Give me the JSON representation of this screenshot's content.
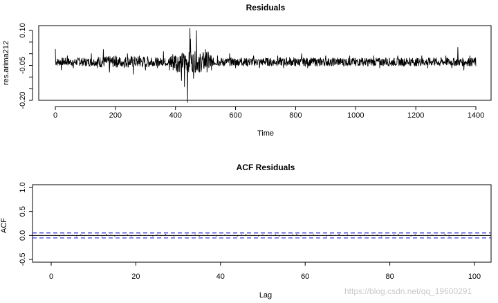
{
  "chart_data": [
    {
      "type": "line",
      "title": "Residuals",
      "xlabel": "Time",
      "ylabel": "res.arima212",
      "xlim": [
        0,
        1400
      ],
      "ylim": [
        -0.2,
        0.1
      ],
      "x_ticks": [
        "0",
        "200",
        "400",
        "600",
        "800",
        "1000",
        "1200",
        "1400"
      ],
      "y_ticks": [
        "-0.20",
        "-0.05",
        "0.10"
      ],
      "grid": false,
      "series": [
        {
          "x": [
            0,
            20,
            40,
            60,
            80,
            100,
            120,
            140,
            160,
            180,
            200,
            220,
            240,
            260,
            280,
            300,
            320,
            340,
            360,
            380,
            400,
            420,
            430,
            440,
            450,
            460,
            470,
            480,
            500,
            520,
            540,
            560,
            580,
            600,
            620,
            640,
            660,
            680,
            700,
            720,
            740,
            760,
            780,
            800,
            820,
            840,
            860,
            880,
            900,
            920,
            940,
            960,
            980,
            1000,
            1020,
            1040,
            1060,
            1080,
            1100,
            1120,
            1140,
            1160,
            1180,
            1200,
            1220,
            1240,
            1260,
            1280,
            1300,
            1320,
            1340,
            1360,
            1380,
            1400
          ],
          "y": [
            0.02,
            -0.04,
            0.03,
            -0.03,
            0.02,
            -0.02,
            0.04,
            -0.03,
            0.06,
            -0.05,
            0.03,
            -0.02,
            0.04,
            -0.06,
            0.03,
            -0.04,
            0.02,
            -0.03,
            0.05,
            -0.04,
            0.03,
            -0.09,
            -0.12,
            -0.21,
            0.11,
            -0.08,
            0.1,
            -0.05,
            0.06,
            -0.04,
            0.03,
            -0.02,
            0.04,
            -0.03,
            0.02,
            -0.02,
            0.03,
            -0.03,
            0.02,
            -0.02,
            0.03,
            -0.03,
            0.02,
            -0.02,
            0.04,
            -0.03,
            0.02,
            -0.02,
            0.03,
            -0.02,
            0.02,
            -0.02,
            0.03,
            -0.02,
            0.02,
            -0.02,
            0.03,
            -0.03,
            0.02,
            -0.02,
            0.03,
            -0.02,
            0.02,
            -0.02,
            0.03,
            -0.03,
            0.02,
            -0.02,
            0.03,
            -0.03,
            0.07,
            -0.04,
            0.03,
            -0.02
          ]
        }
      ]
    },
    {
      "type": "bar",
      "title": "ACF Residuals",
      "xlabel": "Lag",
      "ylabel": "ACF",
      "xlim": [
        0,
        100
      ],
      "ylim": [
        -0.5,
        1.0
      ],
      "x_ticks": [
        "0",
        "20",
        "40",
        "60",
        "80",
        "100"
      ],
      "y_ticks": [
        "-0.5",
        "0.0",
        "0.5",
        "1.0"
      ],
      "grid": false,
      "confidence_band": [
        -0.052,
        0.052
      ],
      "confidence_color": "#2b2bd6",
      "series": [
        {
          "x": [
            1,
            2,
            3,
            4,
            5,
            6,
            7,
            8,
            9,
            10,
            11,
            12,
            13,
            14,
            15,
            16,
            17,
            18,
            19,
            20,
            21,
            22,
            23,
            24,
            25,
            26,
            27,
            28,
            29,
            30,
            31,
            32,
            33,
            34,
            35,
            36,
            37,
            38,
            39,
            40,
            41,
            42,
            43,
            44,
            45,
            46,
            47,
            48,
            49,
            50,
            51,
            52,
            53,
            54,
            55,
            56,
            57,
            58,
            59,
            60,
            61,
            62,
            63,
            64,
            65,
            66,
            67,
            68,
            69,
            70,
            71,
            72,
            73,
            74,
            75,
            76,
            77,
            78,
            79,
            80,
            81,
            82,
            83,
            84,
            85,
            86,
            87,
            88,
            89,
            90,
            91,
            92,
            93,
            94,
            95,
            96,
            97,
            98,
            99,
            100
          ],
          "values": [
            0.01,
            -0.02,
            0.02,
            -0.01,
            0.01,
            -0.02,
            0.02,
            -0.01,
            0.01,
            -0.01,
            0.02,
            -0.02,
            0.03,
            0.01,
            -0.02,
            0.01,
            -0.01,
            0.02,
            -0.02,
            0.01,
            0.02,
            -0.01,
            0.01,
            -0.02,
            0.02,
            -0.01,
            0.03,
            0.01,
            -0.02,
            0.01,
            -0.01,
            0.02,
            -0.01,
            0.02,
            -0.02,
            0.01,
            0.02,
            -0.01,
            -0.02,
            0.01,
            0.02,
            -0.01,
            0.01,
            -0.02,
            0.02,
            0.03,
            -0.01,
            0.01,
            -0.02,
            0.02,
            -0.01,
            0.01,
            0.02,
            -0.02,
            0.01,
            -0.01,
            0.02,
            0.03,
            -0.02,
            0.01,
            -0.01,
            0.02,
            -0.01,
            0.01,
            -0.02,
            0.02,
            0.01,
            0.03,
            -0.01,
            0.02,
            -0.01,
            0.01,
            -0.02,
            0.02,
            -0.01,
            0.01,
            0.02,
            -0.02,
            0.01,
            -0.01,
            0.02,
            0.03,
            -0.01,
            0.01,
            -0.02,
            0.02,
            -0.01,
            0.01,
            -0.02,
            0.02,
            0.01,
            -0.01,
            0.03,
            -0.02,
            0.01,
            -0.01,
            0.02,
            -0.01,
            0.02,
            -0.01
          ]
        }
      ]
    }
  ],
  "watermark": "https://blog.csdn.net/qq_19600291"
}
